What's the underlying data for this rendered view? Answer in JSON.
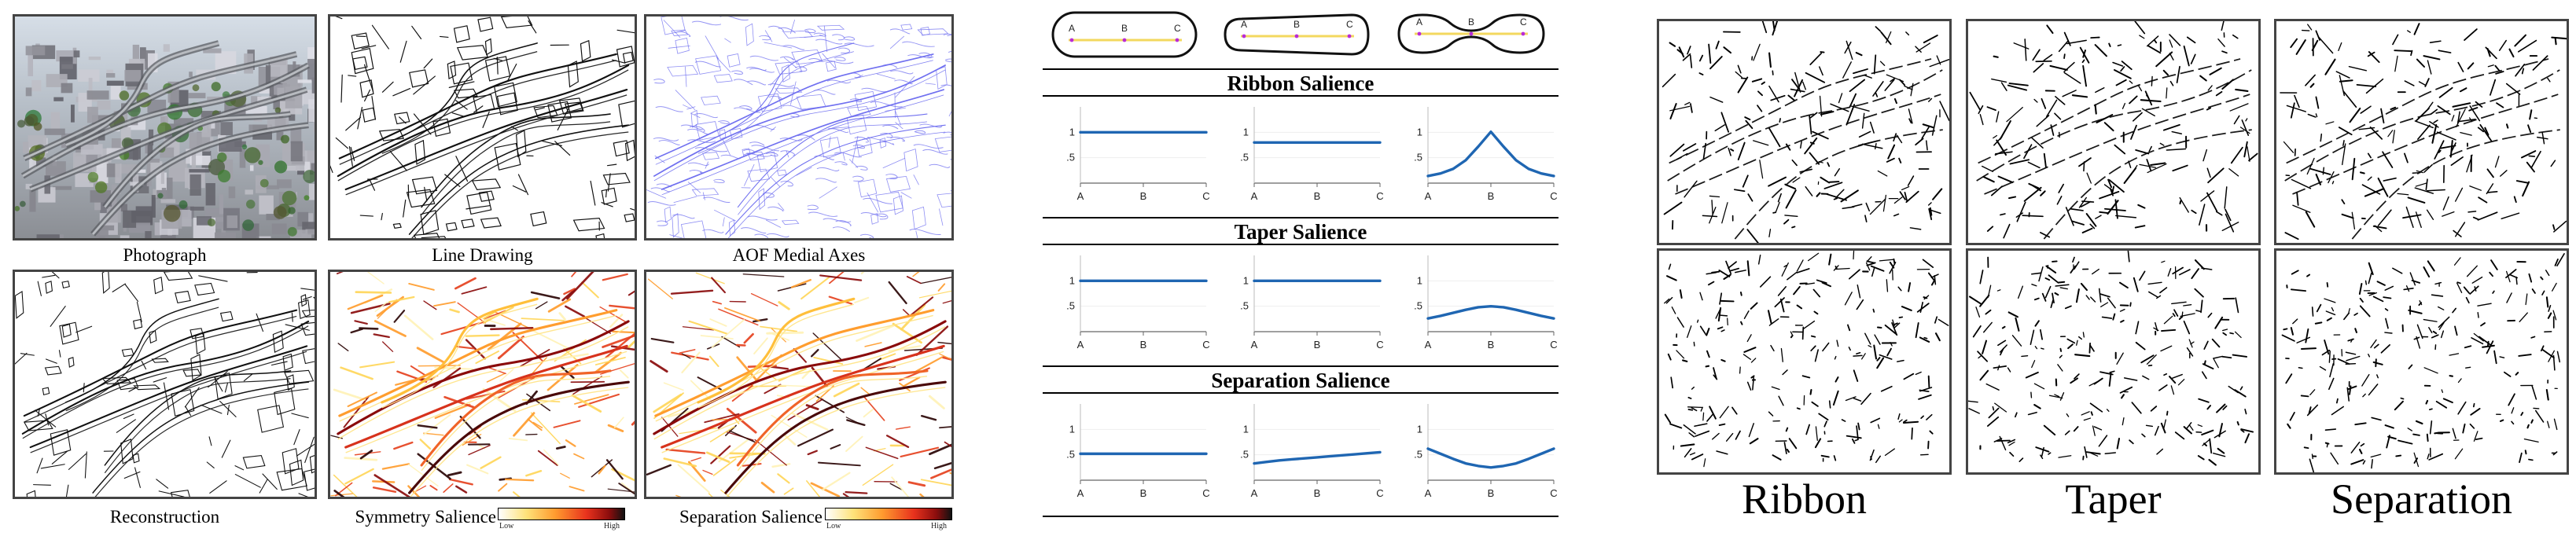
{
  "left_figure": {
    "photo_caption": "Photograph",
    "line_drawing_caption": "Line Drawing",
    "aof_caption": "AOF Medial Axes",
    "reconstruction_caption": "Reconstruction",
    "symmetry_caption": "Symmetry Salience",
    "separation_caption": "Separation Salience",
    "legend_low": "Low",
    "legend_high": "High"
  },
  "middle_figure": {
    "shape_points": [
      "A",
      "B",
      "C"
    ],
    "sections": [
      {
        "title": "Ribbon Salience"
      },
      {
        "title": "Taper Salience"
      },
      {
        "title": "Separation Salience"
      }
    ]
  },
  "right_figure": {
    "labels": [
      "Ribbon",
      "Taper",
      "Separation"
    ]
  },
  "chart_data": [
    {
      "type": "line",
      "title": "Ribbon Salience",
      "x_ticks": [
        "A",
        "B",
        "C"
      ],
      "ylim": [
        0,
        1.5
      ],
      "y_ticks": [
        0.5,
        1
      ],
      "series": [
        {
          "values": [
            1,
            1,
            1,
            1,
            1,
            1,
            1,
            1,
            1,
            1,
            1
          ]
        },
        {
          "values": [
            0.8,
            0.8,
            0.8,
            0.8,
            0.8,
            0.8,
            0.8,
            0.8,
            0.8,
            0.8,
            0.8
          ]
        },
        {
          "values": [
            0.14,
            0.19,
            0.28,
            0.45,
            0.72,
            1.01,
            0.72,
            0.45,
            0.28,
            0.19,
            0.14
          ]
        }
      ]
    },
    {
      "type": "line",
      "title": "Taper Salience",
      "x_ticks": [
        "A",
        "B",
        "C"
      ],
      "ylim": [
        0,
        1.5
      ],
      "y_ticks": [
        0.5,
        1
      ],
      "series": [
        {
          "values": [
            1,
            1,
            1,
            1,
            1,
            1,
            1,
            1,
            1,
            1,
            1
          ]
        },
        {
          "values": [
            1,
            1,
            1,
            1,
            1,
            1,
            1,
            1,
            1,
            1,
            1
          ]
        },
        {
          "values": [
            0.26,
            0.31,
            0.37,
            0.43,
            0.48,
            0.5,
            0.48,
            0.43,
            0.37,
            0.31,
            0.26
          ]
        }
      ]
    },
    {
      "type": "line",
      "title": "Separation Salience",
      "x_ticks": [
        "A",
        "B",
        "C"
      ],
      "ylim": [
        0,
        1.5
      ],
      "y_ticks": [
        0.5,
        1
      ],
      "series": [
        {
          "values": [
            0.52,
            0.52,
            0.52,
            0.52,
            0.52,
            0.52,
            0.52,
            0.52,
            0.52,
            0.52,
            0.52
          ]
        },
        {
          "values": [
            0.33,
            0.36,
            0.39,
            0.41,
            0.43,
            0.45,
            0.47,
            0.49,
            0.51,
            0.53,
            0.55
          ]
        },
        {
          "values": [
            0.62,
            0.52,
            0.42,
            0.33,
            0.28,
            0.25,
            0.28,
            0.33,
            0.42,
            0.52,
            0.62
          ]
        }
      ]
    }
  ],
  "colors": {
    "line_series": "#1f66b2",
    "aof_axes": "#6666ee",
    "salience_low": "#fff2b3",
    "salience_mid": "#f08a2f",
    "salience_high": "#7a0a0a",
    "point_marker": "#b92bd6",
    "axis_line": "#f3d85f"
  }
}
